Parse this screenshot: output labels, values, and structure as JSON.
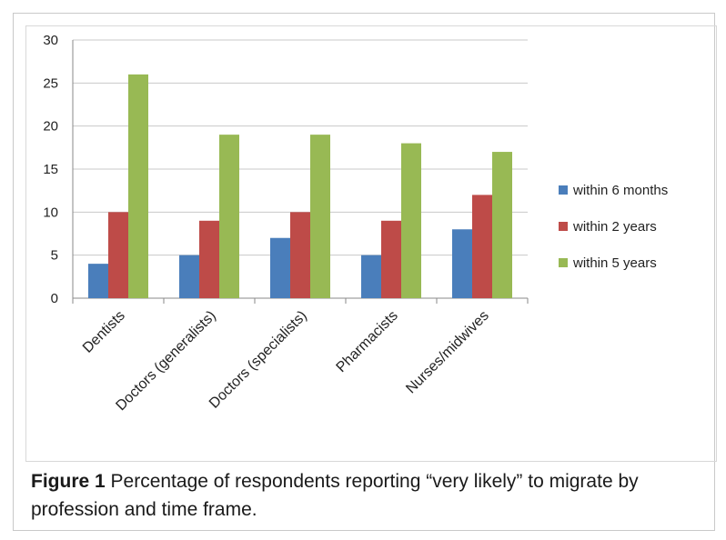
{
  "chart_data": {
    "type": "bar",
    "categories": [
      "Dentists",
      "Doctors (generalists)",
      "Doctors (specialists)",
      "Pharmacists",
      "Nurses/midwives"
    ],
    "series": [
      {
        "name": "within 6 months",
        "values": [
          4,
          5,
          7,
          5,
          8
        ],
        "color": "#4a7ebb"
      },
      {
        "name": "within 2 years",
        "values": [
          10,
          9,
          10,
          9,
          12
        ],
        "color": "#be4b48"
      },
      {
        "name": "within 5 years",
        "values": [
          26,
          19,
          19,
          18,
          17
        ],
        "color": "#98b954"
      }
    ],
    "ylim": [
      0,
      30
    ],
    "yticks": [
      0,
      5,
      10,
      15,
      20,
      25,
      30
    ],
    "grid": true,
    "legend_position": "right"
  },
  "caption": {
    "label": "Figure 1",
    "text": " Percentage of respondents reporting “very likely” to migrate by profession and time frame."
  }
}
